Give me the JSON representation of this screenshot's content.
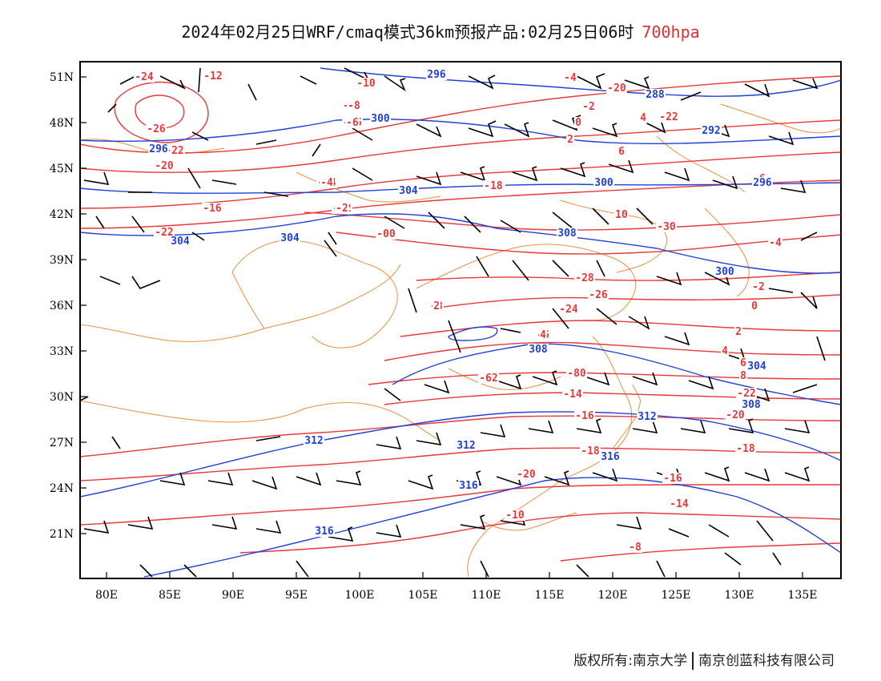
{
  "header": {
    "title": "2024年02月25日WRF/cmaq模式36km预报产品:02月25日06时",
    "level": "700hpa"
  },
  "map": {
    "lat_labels": [
      "51N",
      "48N",
      "45N",
      "42N",
      "39N",
      "36N",
      "33N",
      "30N",
      "27N",
      "24N",
      "21N"
    ],
    "lon_labels": [
      "80E",
      "85E",
      "90E",
      "95E",
      "100E",
      "105E",
      "110E",
      "115E",
      "120E",
      "125E",
      "130E",
      "135E"
    ],
    "temperature_labels": [
      "-24",
      "-26",
      "-22",
      "-20",
      "-18",
      "-16",
      "-14",
      "-12",
      "-10",
      "-8",
      "-6",
      "-4",
      "-2",
      "0",
      "2",
      "4",
      "6",
      "8",
      "10",
      "-30",
      "-28",
      "-26",
      "-24",
      "-22",
      "-20",
      "-18",
      "-16",
      "-14",
      "-12",
      "-10",
      "-8",
      "-6",
      "-4",
      "-2",
      "0",
      "2",
      "4",
      "6",
      "8",
      "-22",
      "-20",
      "-18",
      "-16",
      "-14",
      "-12",
      "-10",
      "-8",
      "-6",
      "-4",
      "-2",
      "0",
      "2",
      "4",
      "6",
      "8",
      "-14",
      "-16",
      "-18",
      "-20",
      "-22",
      "-16",
      "-18",
      "-20",
      "-22"
    ],
    "height_labels": [
      "296",
      "300",
      "288",
      "292",
      "296",
      "300",
      "304",
      "304",
      "304",
      "308",
      "308",
      "312",
      "312",
      "312",
      "316",
      "316",
      "316",
      "308",
      "300",
      "304",
      "296"
    ],
    "colors": {
      "temperature": "#e8383a",
      "geopotential": "#2040d8",
      "boundary": "#e89040",
      "wind": "#000000"
    }
  },
  "footer": {
    "copyright_label": "版权所有:",
    "org1": "南京大学",
    "org2": "南京创蓝科技有限公司"
  }
}
